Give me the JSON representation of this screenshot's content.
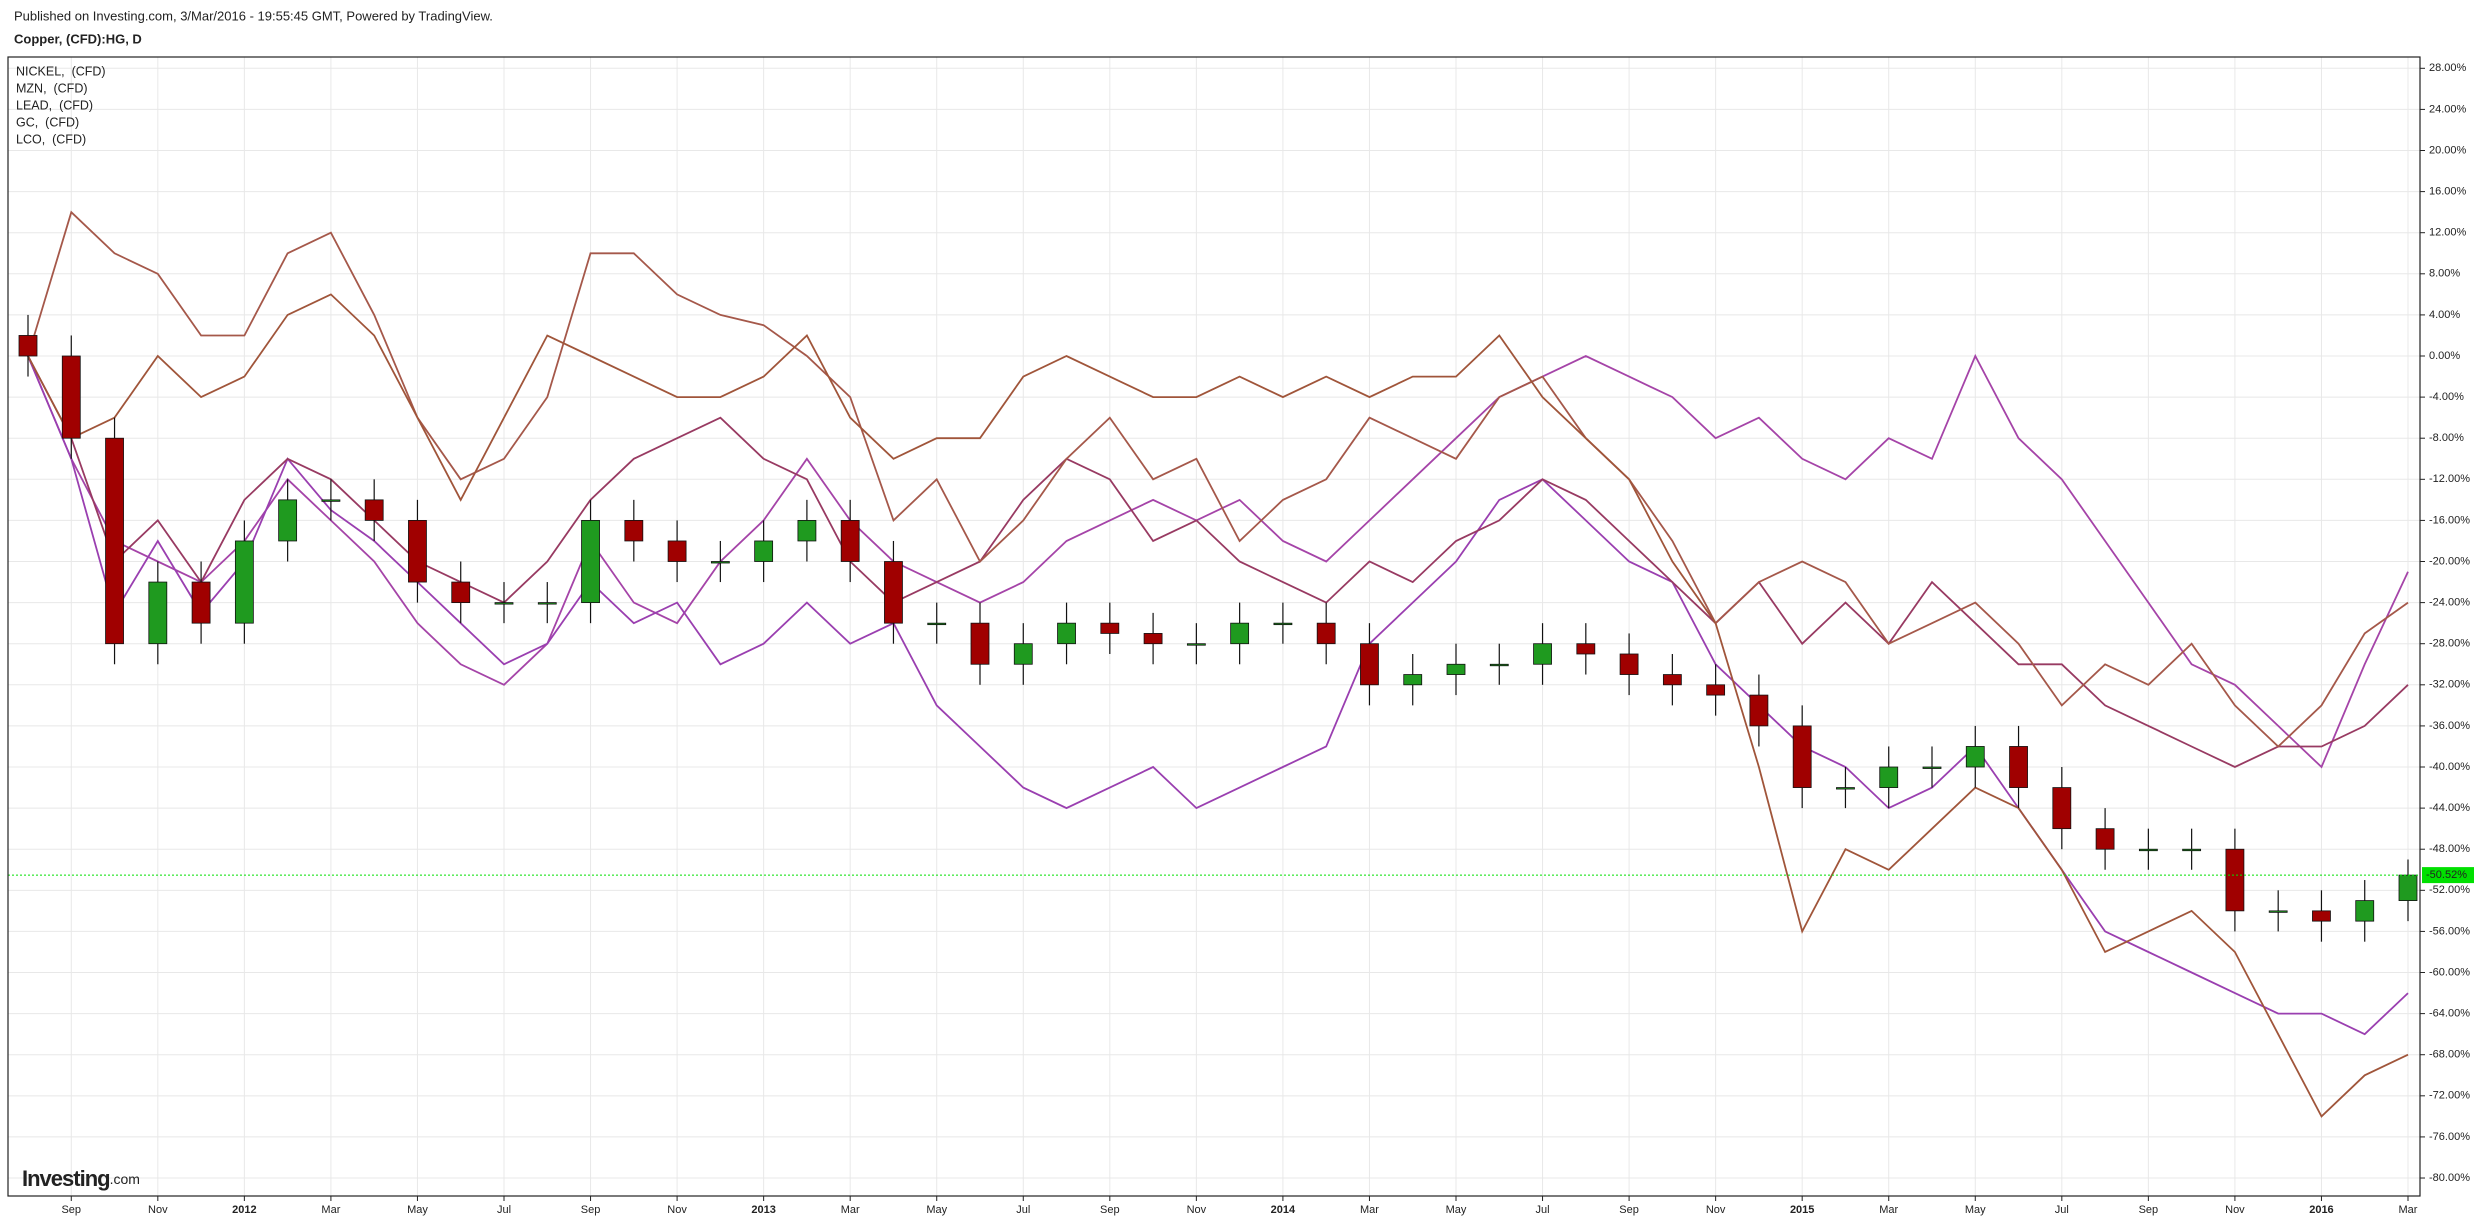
{
  "header": {
    "published": "Published on Investing.com, 3/Mar/2016 - 19:55:45 GMT, Powered by TradingView."
  },
  "logo": {
    "main": "Investing",
    "suffix": ".com"
  },
  "chart_data": {
    "type": "candlestick",
    "title": "Copper, (CFD):HG, D",
    "x": [
      "2011-08",
      "2011-09",
      "2011-10",
      "2011-11",
      "2011-12",
      "2012-01",
      "2012-02",
      "2012-03",
      "2012-04",
      "2012-05",
      "2012-06",
      "2012-07",
      "2012-08",
      "2012-09",
      "2012-10",
      "2012-11",
      "2012-12",
      "2013-01",
      "2013-02",
      "2013-03",
      "2013-04",
      "2013-05",
      "2013-06",
      "2013-07",
      "2013-08",
      "2013-09",
      "2013-10",
      "2013-11",
      "2013-12",
      "2014-01",
      "2014-02",
      "2014-03",
      "2014-04",
      "2014-05",
      "2014-06",
      "2014-07",
      "2014-08",
      "2014-09",
      "2014-10",
      "2014-11",
      "2014-12",
      "2015-01",
      "2015-02",
      "2015-03",
      "2015-04",
      "2015-05",
      "2015-06",
      "2015-07",
      "2015-08",
      "2015-09",
      "2015-10",
      "2015-11",
      "2015-12",
      "2016-01",
      "2016-02",
      "2016-03"
    ],
    "open": [
      2,
      0,
      -8,
      -28,
      -22,
      -26,
      -18,
      -14,
      -14,
      -16,
      -22,
      -24,
      -24,
      -24,
      -16,
      -18,
      -20,
      -20,
      -18,
      -16,
      -20,
      -26,
      -26,
      -30,
      -28,
      -26,
      -27,
      -28,
      -28,
      -26,
      -26,
      -28,
      -32,
      -31,
      -30,
      -30,
      -28,
      -29,
      -31,
      -32,
      -33,
      -36,
      -42,
      -42,
      -40,
      -40,
      -38,
      -42,
      -46,
      -48,
      -48,
      -48,
      -54,
      -54,
      -55,
      -53
    ],
    "high": [
      4,
      2,
      -6,
      -20,
      -20,
      -16,
      -12,
      -12,
      -12,
      -14,
      -20,
      -22,
      -22,
      -14,
      -14,
      -16,
      -18,
      -16,
      -14,
      -14,
      -18,
      -24,
      -24,
      -26,
      -24,
      -24,
      -25,
      -26,
      -24,
      -24,
      -24,
      -26,
      -29,
      -28,
      -28,
      -26,
      -26,
      -27,
      -29,
      -30,
      -31,
      -34,
      -40,
      -38,
      -38,
      -36,
      -36,
      -40,
      -44,
      -46,
      -46,
      -46,
      -52,
      -52,
      -51,
      -49
    ],
    "low": [
      -2,
      -10,
      -30,
      -30,
      -28,
      -28,
      -20,
      -16,
      -18,
      -24,
      -26,
      -26,
      -26,
      -26,
      -20,
      -22,
      -22,
      -22,
      -20,
      -22,
      -28,
      -28,
      -32,
      -32,
      -30,
      -29,
      -30,
      -30,
      -30,
      -28,
      -30,
      -34,
      -34,
      -33,
      -32,
      -32,
      -31,
      -33,
      -34,
      -35,
      -38,
      -44,
      -44,
      -44,
      -42,
      -42,
      -44,
      -48,
      -50,
      -50,
      -50,
      -56,
      -56,
      -57,
      -57,
      -55
    ],
    "close": [
      0,
      -8,
      -28,
      -22,
      -26,
      -18,
      -14,
      -14,
      -16,
      -22,
      -24,
      -24,
      -24,
      -16,
      -18,
      -20,
      -20,
      -18,
      -16,
      -20,
      -26,
      -26,
      -30,
      -28,
      -26,
      -27,
      -28,
      -28,
      -26,
      -26,
      -28,
      -32,
      -31,
      -30,
      -30,
      -28,
      -29,
      -31,
      -32,
      -33,
      -36,
      -42,
      -42,
      -40,
      -40,
      -38,
      -42,
      -46,
      -48,
      -48,
      -48,
      -54,
      -54,
      -55,
      -53,
      -50.52
    ],
    "up_color": "#1f9a1f",
    "down_color": "#a00000",
    "last_close_label": "-50.52%",
    "last_color": "#00e000",
    "series": [
      {
        "name": "NICKEL,  (CFD)",
        "color": "#a544a8",
        "values": [
          0,
          -10,
          -18,
          -20,
          -22,
          -18,
          -12,
          -16,
          -20,
          -26,
          -30,
          -32,
          -28,
          -18,
          -24,
          -26,
          -20,
          -16,
          -10,
          -16,
          -20,
          -22,
          -24,
          -22,
          -18,
          -16,
          -14,
          -16,
          -14,
          -18,
          -20,
          -16,
          -12,
          -8,
          -4,
          -2,
          0,
          -2,
          -4,
          -8,
          -6,
          -10,
          -12,
          -8,
          -10,
          0,
          -8,
          -12,
          -18,
          -24,
          -30,
          -32,
          -36,
          -40,
          -30,
          -21
        ]
      },
      {
        "name": "MZN,  (CFD)",
        "color": "#9a3fb0",
        "values": [
          0,
          -10,
          -25,
          -18,
          -25,
          -20,
          -10,
          -15,
          -18,
          -22,
          -26,
          -30,
          -28,
          -22,
          -26,
          -24,
          -30,
          -28,
          -24,
          -28,
          -26,
          -34,
          -38,
          -42,
          -44,
          -42,
          -40,
          -44,
          -42,
          -40,
          -38,
          -28,
          -24,
          -20,
          -14,
          -12,
          -16,
          -20,
          -22,
          -30,
          -34,
          -38,
          -40,
          -44,
          -42,
          -38,
          -44,
          -50,
          -56,
          -58,
          -60,
          -62,
          -64,
          -64,
          -66,
          -62
        ]
      },
      {
        "name": "LEAD,  (CFD)",
        "color": "#983a62",
        "values": [
          0,
          -8,
          -20,
          -16,
          -22,
          -14,
          -10,
          -12,
          -16,
          -20,
          -22,
          -24,
          -20,
          -14,
          -10,
          -8,
          -6,
          -10,
          -12,
          -20,
          -24,
          -22,
          -20,
          -14,
          -10,
          -12,
          -18,
          -16,
          -20,
          -22,
          -24,
          -20,
          -22,
          -18,
          -16,
          -12,
          -14,
          -18,
          -22,
          -26,
          -22,
          -28,
          -24,
          -28,
          -22,
          -26,
          -30,
          -30,
          -34,
          -36,
          -38,
          -40,
          -38,
          -38,
          -36,
          -32
        ]
      },
      {
        "name": "GC,  (CFD)",
        "color": "#a5584a",
        "values": [
          0,
          14,
          10,
          8,
          2,
          2,
          10,
          12,
          4,
          -6,
          -12,
          -10,
          -4,
          10,
          10,
          6,
          4,
          3,
          0,
          -4,
          -16,
          -12,
          -20,
          -16,
          -10,
          -6,
          -12,
          -10,
          -18,
          -14,
          -12,
          -6,
          -8,
          -10,
          -4,
          -2,
          -8,
          -12,
          -18,
          -26,
          -22,
          -20,
          -22,
          -28,
          -26,
          -24,
          -28,
          -34,
          -30,
          -32,
          -28,
          -34,
          -38,
          -34,
          -27,
          -24
        ]
      },
      {
        "name": "LCO,  (CFD)",
        "color": "#a0553a",
        "values": [
          0,
          -8,
          -6,
          0,
          -4,
          -2,
          4,
          6,
          2,
          -6,
          -14,
          -6,
          2,
          0,
          -2,
          -4,
          -4,
          -2,
          2,
          -6,
          -10,
          -8,
          -8,
          -2,
          0,
          -2,
          -4,
          -4,
          -2,
          -4,
          -2,
          -4,
          -2,
          -2,
          2,
          -4,
          -8,
          -12,
          -20,
          -26,
          -40,
          -56,
          -48,
          -50,
          -46,
          -42,
          -44,
          -50,
          -58,
          -56,
          -54,
          -58,
          -66,
          -74,
          -70,
          -68
        ]
      }
    ],
    "xlim": [
      "2011-08",
      "2016-03"
    ],
    "xticks": [
      {
        "value": "2011-09",
        "label": "Sep"
      },
      {
        "value": "2011-11",
        "label": "Nov"
      },
      {
        "value": "2012-01",
        "label": "2012"
      },
      {
        "value": "2012-03",
        "label": "Mar"
      },
      {
        "value": "2012-05",
        "label": "May"
      },
      {
        "value": "2012-07",
        "label": "Jul"
      },
      {
        "value": "2012-09",
        "label": "Sep"
      },
      {
        "value": "2012-11",
        "label": "Nov"
      },
      {
        "value": "2013-01",
        "label": "2013"
      },
      {
        "value": "2013-03",
        "label": "Mar"
      },
      {
        "value": "2013-05",
        "label": "May"
      },
      {
        "value": "2013-07",
        "label": "Jul"
      },
      {
        "value": "2013-09",
        "label": "Sep"
      },
      {
        "value": "2013-11",
        "label": "Nov"
      },
      {
        "value": "2014-01",
        "label": "2014"
      },
      {
        "value": "2014-03",
        "label": "Mar"
      },
      {
        "value": "2014-05",
        "label": "May"
      },
      {
        "value": "2014-07",
        "label": "Jul"
      },
      {
        "value": "2014-09",
        "label": "Sep"
      },
      {
        "value": "2014-11",
        "label": "Nov"
      },
      {
        "value": "2015-01",
        "label": "2015"
      },
      {
        "value": "2015-03",
        "label": "Mar"
      },
      {
        "value": "2015-05",
        "label": "May"
      },
      {
        "value": "2015-07",
        "label": "Jul"
      },
      {
        "value": "2015-09",
        "label": "Sep"
      },
      {
        "value": "2015-11",
        "label": "Nov"
      },
      {
        "value": "2016-01",
        "label": "2016"
      },
      {
        "value": "2016-03",
        "label": "Mar"
      }
    ],
    "ylim": [
      -81.75,
      29.1
    ],
    "yticks": [
      {
        "value": 28,
        "label": "28.00%"
      },
      {
        "value": 24,
        "label": "24.00%"
      },
      {
        "value": 20,
        "label": "20.00%"
      },
      {
        "value": 16,
        "label": "16.00%"
      },
      {
        "value": 12,
        "label": "12.00%"
      },
      {
        "value": 8,
        "label": "8.00%"
      },
      {
        "value": 4,
        "label": "4.00%"
      },
      {
        "value": 0,
        "label": "0.00%"
      },
      {
        "value": -4,
        "label": "-4.00%"
      },
      {
        "value": -8,
        "label": "-8.00%"
      },
      {
        "value": -12,
        "label": "-12.00%"
      },
      {
        "value": -16,
        "label": "-16.00%"
      },
      {
        "value": -20,
        "label": "-20.00%"
      },
      {
        "value": -24,
        "label": "-24.00%"
      },
      {
        "value": -28,
        "label": "-28.00%"
      },
      {
        "value": -32,
        "label": "-32.00%"
      },
      {
        "value": -36,
        "label": "-36.00%"
      },
      {
        "value": -40,
        "label": "-40.00%"
      },
      {
        "value": -44,
        "label": "-44.00%"
      },
      {
        "value": -48,
        "label": "-48.00%"
      },
      {
        "value": -52,
        "label": "-52.00%"
      },
      {
        "value": -56,
        "label": "-56.00%"
      },
      {
        "value": -60,
        "label": "-60.00%"
      },
      {
        "value": -64,
        "label": "-64.00%"
      },
      {
        "value": -68,
        "label": "-68.00%"
      },
      {
        "value": -72,
        "label": "-72.00%"
      },
      {
        "value": -76,
        "label": "-76.00%"
      },
      {
        "value": -80,
        "label": "-80.00%"
      }
    ],
    "grid": true
  }
}
